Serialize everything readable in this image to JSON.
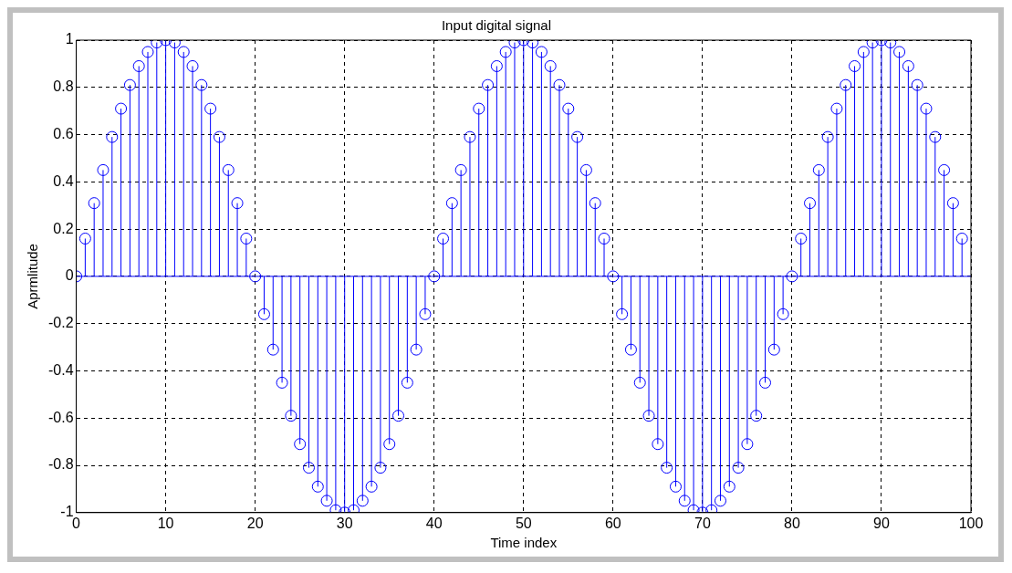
{
  "chart_data": {
    "type": "lollipop",
    "title": "Input digital signal",
    "xlabel": "Time index",
    "ylabel": "Aprmlitude",
    "x": [
      0,
      1,
      2,
      3,
      4,
      5,
      6,
      7,
      8,
      9,
      10,
      11,
      12,
      13,
      14,
      15,
      16,
      17,
      18,
      19,
      20,
      21,
      22,
      23,
      24,
      25,
      26,
      27,
      28,
      29,
      30,
      31,
      32,
      33,
      34,
      35,
      36,
      37,
      38,
      39,
      40,
      41,
      42,
      43,
      44,
      45,
      46,
      47,
      48,
      49,
      50,
      51,
      52,
      53,
      54,
      55,
      56,
      57,
      58,
      59,
      60,
      61,
      62,
      63,
      64,
      65,
      66,
      67,
      68,
      69,
      70,
      71,
      72,
      73,
      74,
      75,
      76,
      77,
      78,
      79,
      80,
      81,
      82,
      83,
      84,
      85,
      86,
      87,
      88,
      89,
      90,
      91,
      92,
      93,
      94,
      95,
      96,
      97,
      98,
      99
    ],
    "series": [
      {
        "color": "#0000ff",
        "values": [
          0,
          0.16,
          0.31,
          0.45,
          0.59,
          0.71,
          0.81,
          0.89,
          0.95,
          0.99,
          1,
          0.99,
          0.95,
          0.89,
          0.81,
          0.71,
          0.59,
          0.45,
          0.31,
          0.16,
          0,
          -0.16,
          -0.31,
          -0.45,
          -0.59,
          -0.71,
          -0.81,
          -0.89,
          -0.95,
          -0.99,
          -1,
          -0.99,
          -0.95,
          -0.89,
          -0.81,
          -0.71,
          -0.59,
          -0.45,
          -0.31,
          -0.16,
          0,
          0.16,
          0.31,
          0.45,
          0.59,
          0.71,
          0.81,
          0.89,
          0.95,
          0.99,
          1,
          0.99,
          0.95,
          0.89,
          0.81,
          0.71,
          0.59,
          0.45,
          0.31,
          0.16,
          0,
          -0.16,
          -0.31,
          -0.45,
          -0.59,
          -0.71,
          -0.81,
          -0.89,
          -0.95,
          -0.99,
          -1,
          -0.99,
          -0.95,
          -0.89,
          -0.81,
          -0.71,
          -0.59,
          -0.45,
          -0.31,
          -0.16,
          0,
          0.16,
          0.31,
          0.45,
          0.59,
          0.71,
          0.81,
          0.89,
          0.95,
          0.99,
          1,
          0.99,
          0.95,
          0.89,
          0.81,
          0.71,
          0.59,
          0.45,
          0.31,
          0.16
        ]
      }
    ],
    "xlim": [
      0,
      100
    ],
    "xticks": [
      0,
      10,
      20,
      30,
      40,
      50,
      60,
      70,
      80,
      90,
      100
    ],
    "ylim": [
      -1,
      1
    ],
    "yticks": [
      -1,
      -0.8,
      -0.6,
      -0.4,
      -0.2,
      0,
      0.2,
      0.4,
      0.6,
      0.8,
      1
    ],
    "ref_lines": [
      {
        "axis": "y",
        "value": 0,
        "color": "#0000ff"
      }
    ],
    "grid": true,
    "marker": "circle",
    "legend": false
  }
}
